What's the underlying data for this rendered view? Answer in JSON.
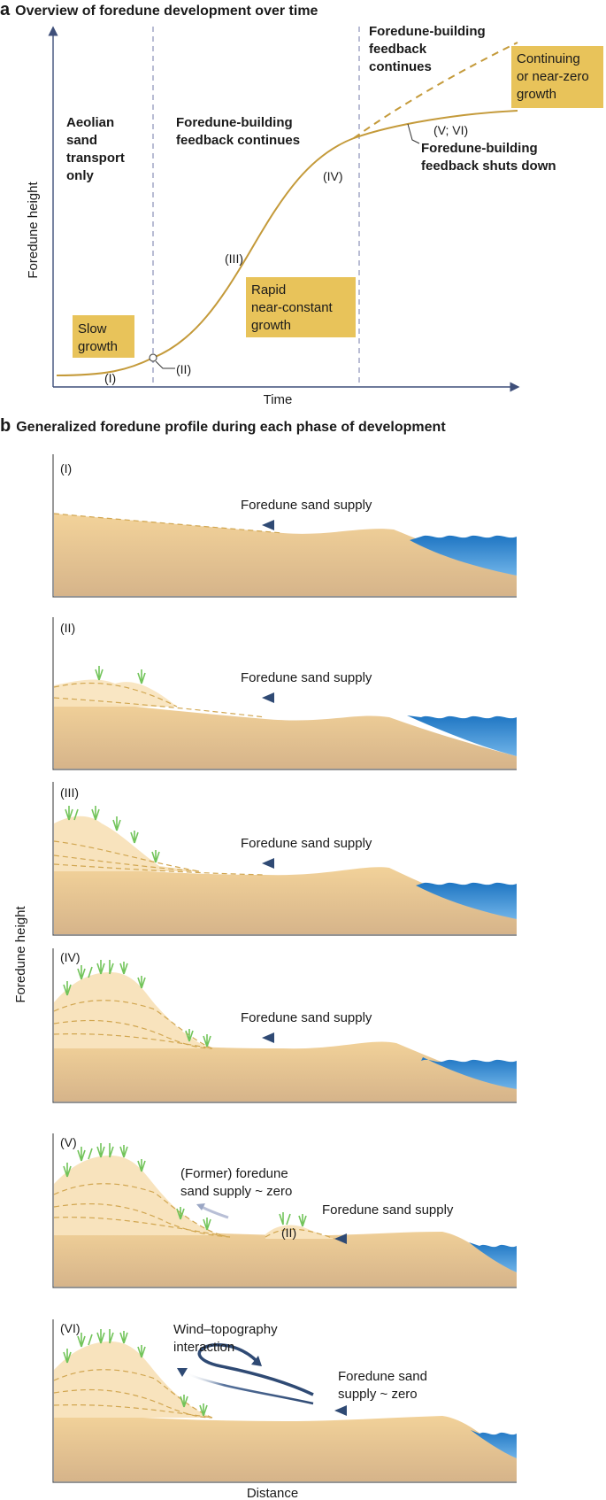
{
  "panel_a": {
    "letter": "a",
    "title": "Overview of foredune development over time",
    "y_axis": "Foredune height",
    "x_axis": "Time",
    "phase1": [
      "Aeolian",
      "sand",
      "transport",
      "only"
    ],
    "phase2": [
      "Foredune-building",
      "feedback continues"
    ],
    "phase3_top": [
      "Foredune-building",
      "feedback",
      "continues"
    ],
    "box_slow": [
      "Slow",
      "growth"
    ],
    "box_rapid": [
      "Rapid",
      "near-constant",
      "growth"
    ],
    "box_continuing": [
      "Continuing",
      "or near-zero",
      "growth"
    ],
    "shutdown": [
      "Foredune-building",
      "feedback shuts down"
    ],
    "markers": {
      "I": "(I)",
      "II": "(II)",
      "III": "(III)",
      "IV": "(IV)",
      "V_VI": "(V; VI)"
    }
  },
  "panel_b": {
    "letter": "b",
    "title": "Generalized foredune profile during each phase of development",
    "y_axis": "Foredune height",
    "x_axis": "Distance",
    "profiles": [
      {
        "label": "(I)",
        "supply": [
          "Foredune sand supply"
        ]
      },
      {
        "label": "(II)",
        "supply": [
          "Foredune sand supply"
        ]
      },
      {
        "label": "(III)",
        "supply": [
          "Foredune sand supply"
        ]
      },
      {
        "label": "(IV)",
        "supply": [
          "Foredune sand supply"
        ]
      },
      {
        "label": "(V)",
        "supply": [
          "Foredune sand supply"
        ],
        "former": [
          "(Former) foredune",
          "sand supply ~ zero"
        ],
        "incipient": "(II)"
      },
      {
        "label": "(VI)",
        "supply": [
          "Foredune sand",
          "supply ~ zero"
        ],
        "wind": [
          "Wind–topography",
          "interaction"
        ]
      }
    ]
  },
  "colors": {
    "curve": "#c49a3a",
    "box": "#e8c35a",
    "sand": "#f0cf95",
    "sand_dark": "#d9b689",
    "dune": "#f8e3bd",
    "water": "#3d8fd1",
    "arrow": "#3f5a80",
    "grass": "#72c45a",
    "dashed_axis": "#8a8fb8"
  }
}
